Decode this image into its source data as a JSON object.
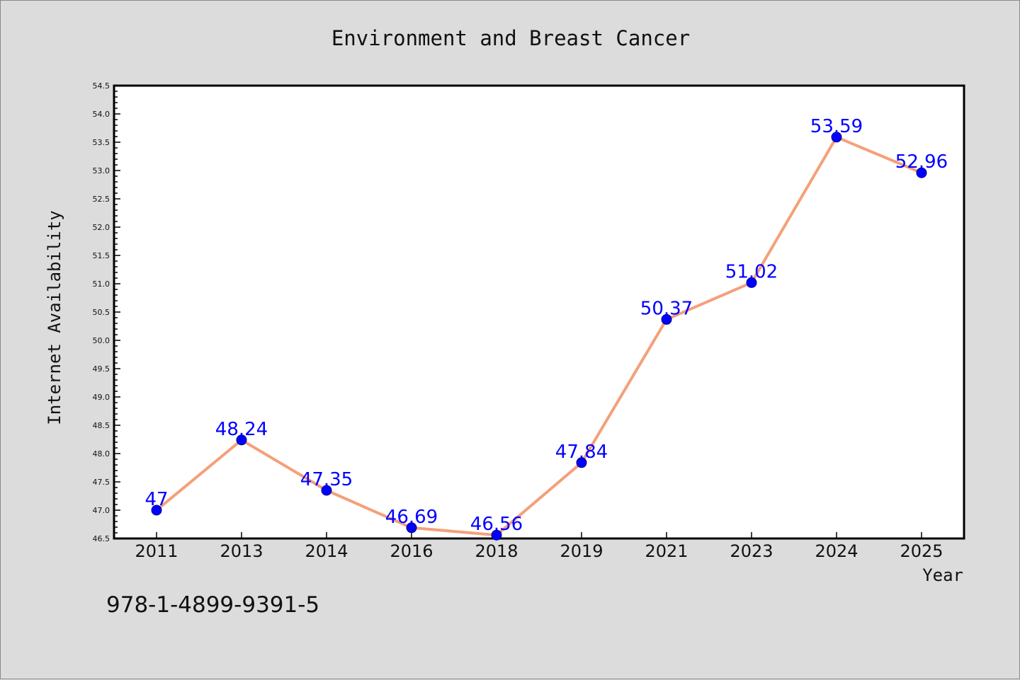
{
  "chart_data": {
    "type": "line",
    "title": "Environment and Breast Cancer",
    "xlabel": "Year",
    "ylabel": "Internet Availability",
    "categories": [
      "2011",
      "2013",
      "2014",
      "2016",
      "2018",
      "2019",
      "2021",
      "2023",
      "2024",
      "2025"
    ],
    "series": [
      {
        "values": [
          47,
          48.24,
          47.35,
          46.69,
          46.56,
          47.84,
          50.37,
          51.02,
          53.59,
          52.96
        ],
        "labels": [
          "47",
          "48.24",
          "47.35",
          "46.69",
          "46.56",
          "47.84",
          "50.37",
          "51.02",
          "53.59",
          "52.96"
        ]
      }
    ],
    "ylim": [
      46.5,
      54.5
    ],
    "yticks": [
      "46.5",
      "47.0",
      "47.5",
      "48.0",
      "48.5",
      "49.0",
      "49.5",
      "50.0",
      "50.5",
      "51.0",
      "51.5",
      "52.0",
      "52.5",
      "53.0",
      "53.5",
      "54.0",
      "54.5"
    ],
    "grid": false,
    "line_color": "#f4a07a",
    "marker_color": "#0000ff",
    "label_color": "#0000ff",
    "background_color": "#dcdcdc",
    "plot_background_color": "#ffffff"
  },
  "footnote": "978-1-4899-9391-5"
}
